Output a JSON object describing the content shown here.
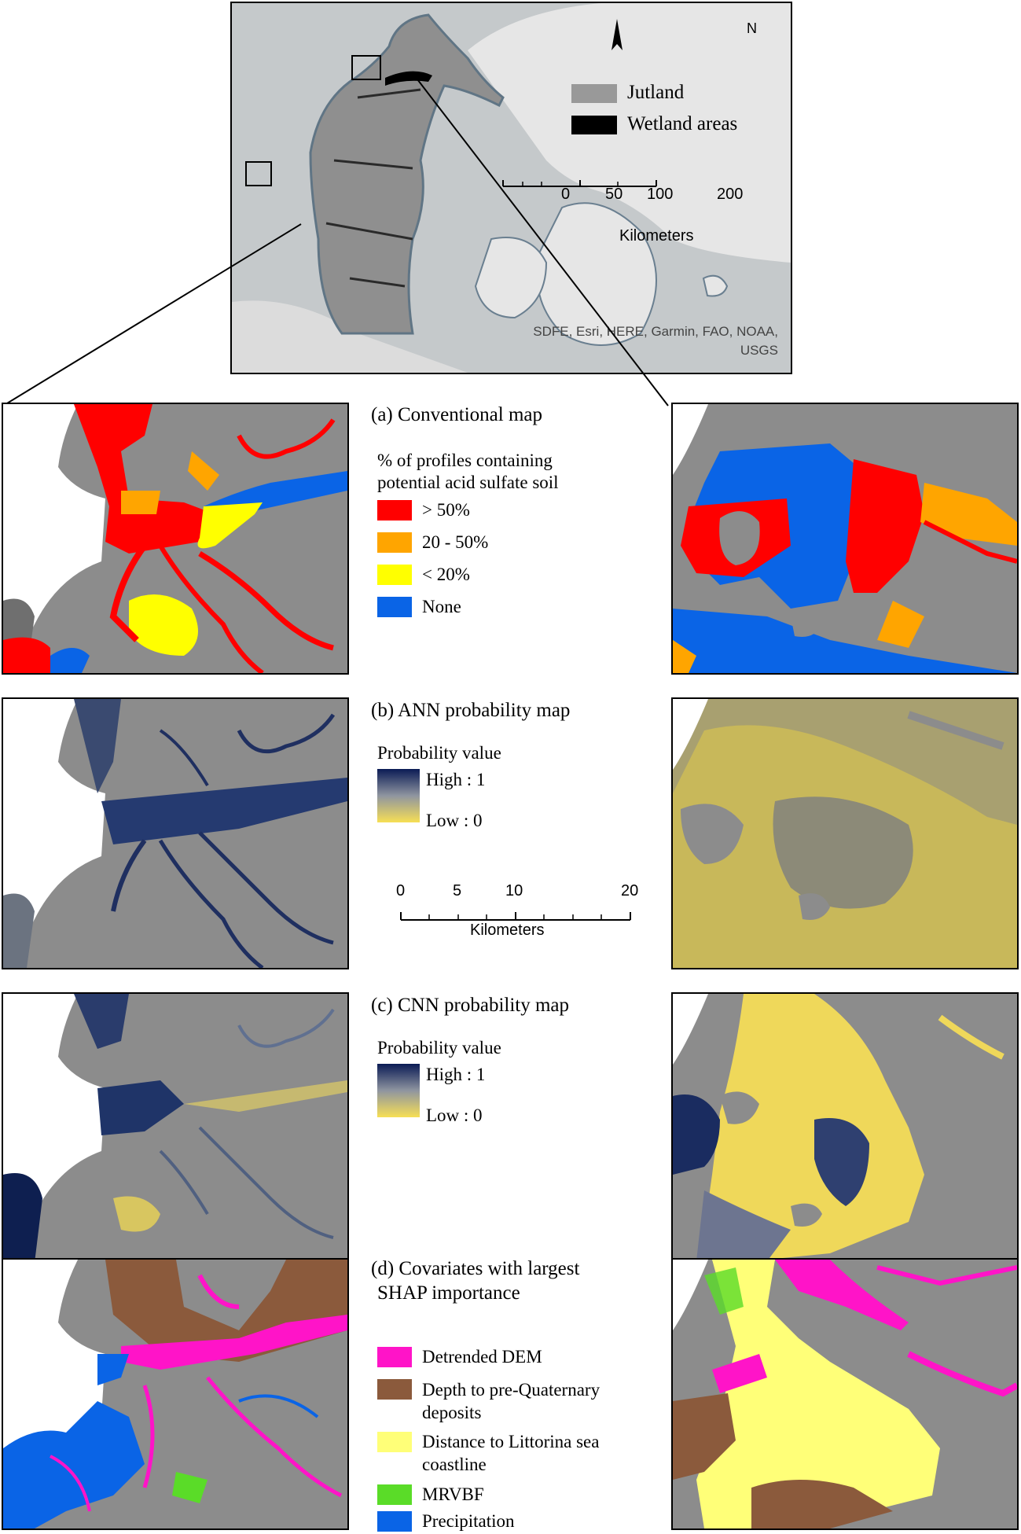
{
  "overview": {
    "legend": [
      {
        "label": "Jutland",
        "color": "#999999"
      },
      {
        "label": "Wetland areas",
        "color": "#000000"
      }
    ],
    "north": "N",
    "scale_ticks": [
      "0",
      "50",
      "100",
      "200"
    ],
    "scale_unit": "Kilometers",
    "credit_line1": "SDFE, Esri, HERE, Garmin, FAO, NOAA,",
    "credit_line2": "USGS"
  },
  "panel_a": {
    "title": "(a) Conventional map",
    "subtitle_line1": "% of profiles containing",
    "subtitle_line2": "potential acid sulfate soil",
    "legend": [
      {
        "label": "> 50%",
        "color": "#ff0000"
      },
      {
        "label": "20 - 50%",
        "color": "#ffa500"
      },
      {
        "label": "< 20%",
        "color": "#ffff00"
      },
      {
        "label": "None",
        "color": "#0a64e6"
      }
    ]
  },
  "panel_b": {
    "title": "(b) ANN probability map",
    "legend_title": "Probability value",
    "high_label": "High : 1",
    "low_label": "Low : 0"
  },
  "detail_scale": {
    "ticks": [
      "0",
      "5",
      "10",
      "20"
    ],
    "unit": "Kilometers"
  },
  "panel_c": {
    "title": "(c) CNN probability map",
    "legend_title": "Probability value",
    "high_label": "High : 1",
    "low_label": "Low : 0"
  },
  "panel_d": {
    "title_line1": "(d) Covariates with largest",
    "title_line2": "SHAP importance",
    "legend": [
      {
        "label_line1": "Detrended DEM",
        "label_line2": "",
        "color": "#ff14c8"
      },
      {
        "label_line1": "Depth to pre-Quaternary",
        "label_line2": "deposits",
        "color": "#8b5a3c"
      },
      {
        "label_line1": "Distance to Littorina sea",
        "label_line2": "coastline",
        "color": "#ffff78"
      },
      {
        "label_line1": "MRVBF",
        "label_line2": "",
        "color": "#5adc28"
      },
      {
        "label_line1": "Precipitation",
        "label_line2": "",
        "color": "#0a64e6"
      }
    ]
  }
}
